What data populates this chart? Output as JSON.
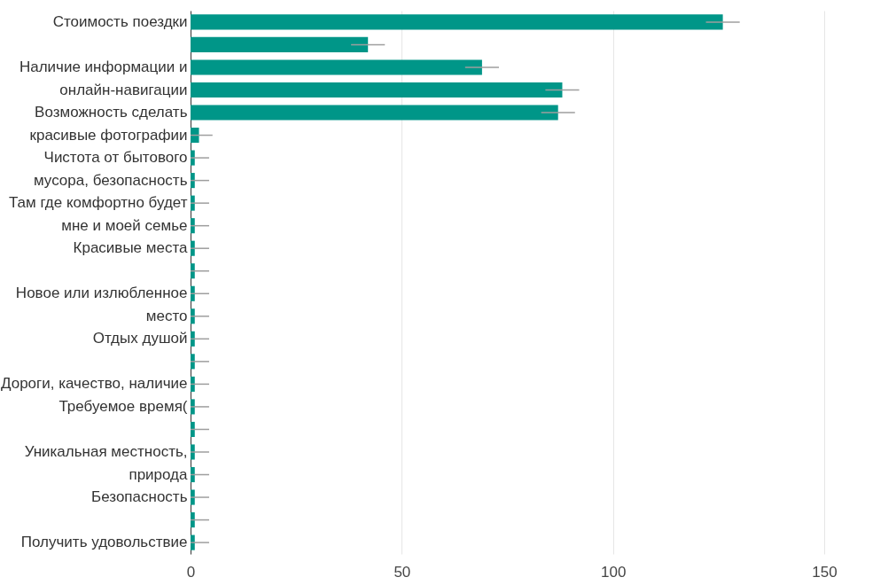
{
  "chart_data": {
    "type": "bar",
    "orientation": "horizontal",
    "color": "#009688",
    "categories": [
      "Стоимость поездки",
      null,
      "Наличие информации и онлайн-навигации",
      null,
      "Возможность сделать красивые фотографии",
      null,
      "Чистота от бытового мусора, безопасность",
      null,
      "Там где комфортно будет мне и моей семье",
      null,
      "Красивые места",
      null,
      "Новое или излюбленное место",
      null,
      "Отдых душой",
      null,
      "Дороги, качество, наличие",
      "Требуемое время(",
      null,
      "Уникальная местность, природа",
      null,
      "Безопасность",
      null,
      "Получить удовольствие"
    ],
    "values": [
      126,
      42,
      69,
      88,
      87,
      2,
      1,
      1,
      1,
      1,
      1,
      1,
      1,
      1,
      1,
      1,
      1,
      1,
      1,
      1,
      1,
      1,
      1,
      1
    ],
    "errors": [
      [
        122,
        130
      ],
      [
        38,
        46
      ],
      [
        65,
        73
      ],
      [
        84,
        92
      ],
      [
        83,
        91
      ],
      [
        0,
        5.2
      ],
      [
        0,
        4.4
      ],
      [
        0,
        4.4
      ],
      [
        0,
        4.4
      ],
      [
        0,
        4.4
      ],
      [
        0,
        4.4
      ],
      [
        0,
        4.4
      ],
      [
        0,
        4.4
      ],
      [
        0,
        4.4
      ],
      [
        0,
        4.4
      ],
      [
        0,
        4.4
      ],
      [
        0,
        4.4
      ],
      [
        0,
        4.4
      ],
      [
        0,
        4.4
      ],
      [
        0,
        4.4
      ],
      [
        0,
        4.4
      ],
      [
        0,
        4.4
      ],
      [
        0,
        4.4
      ],
      [
        0,
        4.4
      ]
    ],
    "xlim": [
      0,
      150
    ],
    "xticks": [
      0,
      50,
      100,
      150
    ],
    "grid": "x"
  }
}
